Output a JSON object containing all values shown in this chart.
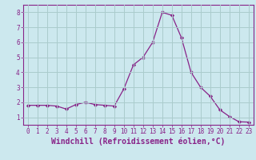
{
  "x": [
    0,
    1,
    2,
    3,
    4,
    5,
    6,
    7,
    8,
    9,
    10,
    11,
    12,
    13,
    14,
    15,
    16,
    17,
    18,
    19,
    20,
    21,
    22,
    23
  ],
  "y": [
    1.8,
    1.8,
    1.8,
    1.75,
    1.55,
    1.85,
    2.0,
    1.85,
    1.8,
    1.75,
    2.9,
    4.5,
    5.0,
    6.0,
    8.0,
    7.8,
    6.3,
    4.0,
    3.0,
    2.4,
    1.5,
    1.05,
    0.7,
    0.68
  ],
  "line_color": "#882288",
  "marker": "D",
  "marker_size": 2.2,
  "bg_color": "#cce8ee",
  "grid_color": "#aacccc",
  "xlabel": "Windchill (Refroidissement éolien,°C)",
  "ylabel": "",
  "xlim": [
    -0.5,
    23.5
  ],
  "ylim": [
    0.5,
    8.5
  ],
  "xticks": [
    0,
    1,
    2,
    3,
    4,
    5,
    6,
    7,
    8,
    9,
    10,
    11,
    12,
    13,
    14,
    15,
    16,
    17,
    18,
    19,
    20,
    21,
    22,
    23
  ],
  "yticks": [
    1,
    2,
    3,
    4,
    5,
    6,
    7,
    8
  ],
  "tick_fontsize": 5.5,
  "xlabel_fontsize": 7.0,
  "spine_color": "#882288",
  "grid_alpha": 1.0
}
